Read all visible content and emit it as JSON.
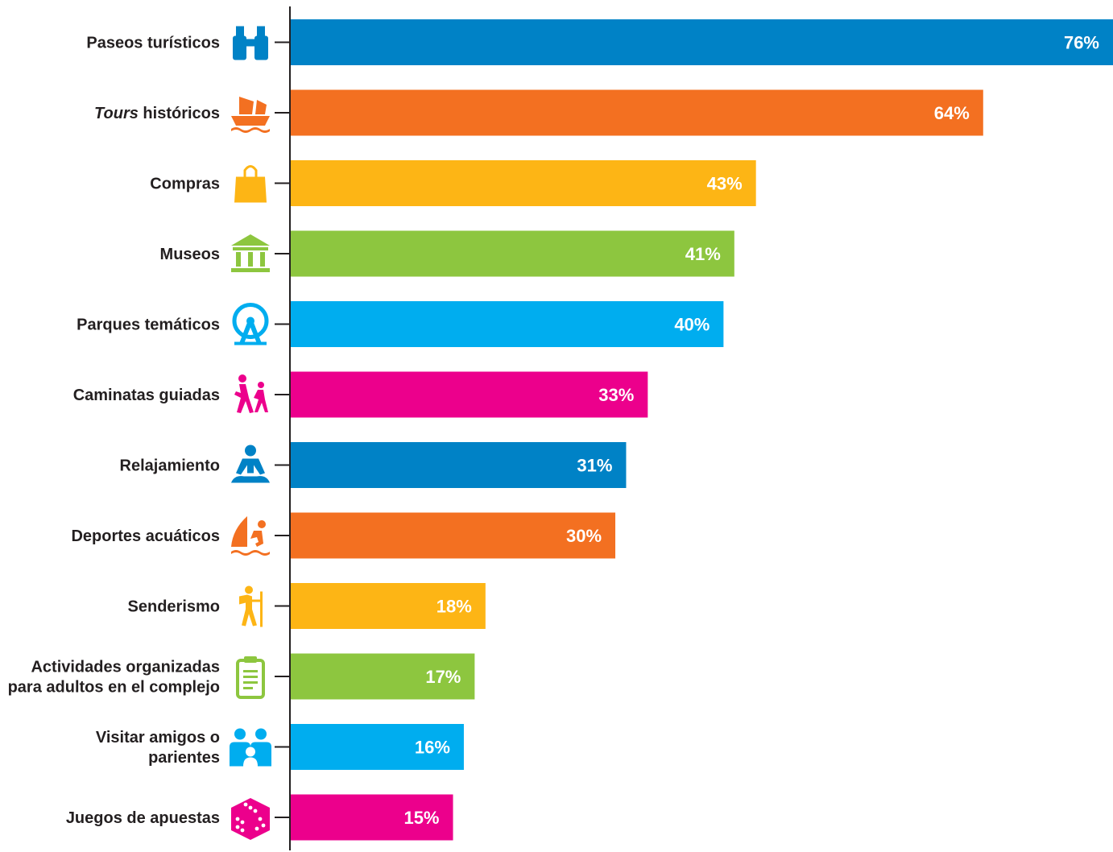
{
  "chart_data": {
    "type": "bar",
    "orientation": "horizontal",
    "grid": false,
    "legend": "none",
    "xlim": [
      0,
      76
    ],
    "categories": [
      "Paseos turísticos",
      "Tours históricos",
      "Compras",
      "Museos",
      "Parques temáticos",
      "Caminatas guiadas",
      "Relajamiento",
      "Deportes acuáticos",
      "Senderismo",
      "Actividades organizadas para adultos en el complejo",
      "Visitar amigos o parientes",
      "Juegos de apuestas"
    ],
    "label_lines": [
      [
        "Paseos turísticos"
      ],
      [
        "Tours históricos"
      ],
      [
        "Compras"
      ],
      [
        "Museos"
      ],
      [
        "Parques temáticos"
      ],
      [
        "Caminatas guiadas"
      ],
      [
        "Relajamiento"
      ],
      [
        "Deportes acuáticos"
      ],
      [
        "Senderismo"
      ],
      [
        "Actividades organizadas",
        "para adultos en el complejo"
      ],
      [
        "Visitar amigos o",
        "parientes"
      ],
      [
        "Juegos de apuestas"
      ]
    ],
    "values": [
      76,
      64,
      43,
      41,
      40,
      33,
      31,
      30,
      18,
      17,
      16,
      15
    ],
    "value_labels": [
      "76%",
      "64%",
      "43%",
      "41%",
      "40%",
      "33%",
      "31%",
      "30%",
      "18%",
      "17%",
      "16%",
      "15%"
    ],
    "colors": [
      "#0082c6",
      "#f37021",
      "#fdb515",
      "#8dc63f",
      "#00adef",
      "#ec008c",
      "#0082c6",
      "#f37021",
      "#fdb515",
      "#8dc63f",
      "#00adef",
      "#ec008c"
    ],
    "icons": [
      "binoculars-icon",
      "ship-icon",
      "shopping-bag-icon",
      "museum-icon",
      "ferris-wheel-icon",
      "hikers-icon",
      "meditation-icon",
      "windsurf-icon",
      "hiker-icon",
      "clipboard-icon",
      "family-icon",
      "dice-icon"
    ]
  }
}
